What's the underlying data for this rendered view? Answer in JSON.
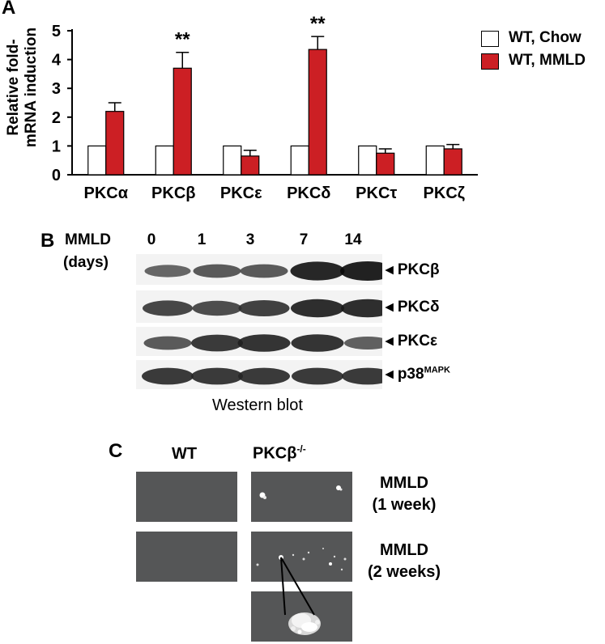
{
  "panel_a": {
    "letter": "A",
    "ylabel_line1": "Relative fold-",
    "ylabel_line2": "mRNA induction",
    "legend": [
      "WT, Chow",
      "WT, MMLD"
    ]
  },
  "chart_data": {
    "type": "bar",
    "categories": [
      "PKCα",
      "PKCβ",
      "PKCε",
      "PKCδ",
      "PKCτ",
      "PKCζ"
    ],
    "series": [
      {
        "name": "WT, Chow",
        "values": [
          1.0,
          1.0,
          1.0,
          1.0,
          1.0,
          1.0
        ],
        "errors": [
          0,
          0,
          0,
          0,
          0,
          0
        ]
      },
      {
        "name": "WT, MMLD",
        "values": [
          2.2,
          3.7,
          0.65,
          4.35,
          0.75,
          0.9
        ],
        "errors": [
          0.3,
          0.55,
          0.2,
          0.45,
          0.15,
          0.15
        ]
      }
    ],
    "significance": [
      "",
      "**",
      "",
      "**",
      "",
      ""
    ],
    "ylim": [
      0,
      5
    ],
    "yticks": [
      0,
      1,
      2,
      3,
      4,
      5
    ],
    "colors": {
      "WT, Chow": "#ffffff",
      "WT, MMLD": "#cc1f24"
    },
    "legend_position": "top-right",
    "grid": false
  },
  "panel_b": {
    "letter": "B",
    "condition_line1": "MMLD",
    "condition_line2": "(days)",
    "lanes": [
      "0",
      "1",
      "3",
      "7",
      "14"
    ],
    "blots": [
      {
        "label": "PKCβ",
        "intensity": [
          0.45,
          0.55,
          0.55,
          0.95,
          1.0
        ]
      },
      {
        "label": "PKCδ",
        "intensity": [
          0.7,
          0.65,
          0.75,
          0.9,
          0.9
        ]
      },
      {
        "label": "PKCε",
        "intensity": [
          0.55,
          0.8,
          0.85,
          0.85,
          0.5
        ]
      },
      {
        "label": "p38",
        "label_sup": "MAPK",
        "intensity": [
          0.8,
          0.8,
          0.8,
          0.8,
          0.8
        ]
      }
    ],
    "caption": "Western blot"
  },
  "panel_c": {
    "letter": "C",
    "col1": "WT",
    "col2_base": "PKCβ",
    "col2_sup": "-/-",
    "row1_line1": "MMLD",
    "row1_line2": "(1 week)",
    "row2_line1": "MMLD",
    "row2_line2": "(2 weeks)"
  }
}
